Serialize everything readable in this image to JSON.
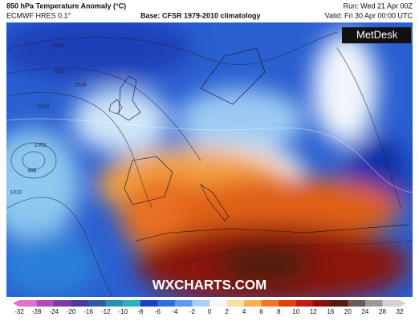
{
  "header": {
    "title": "850 hPa Temperature Anomaly (°C)",
    "model": "ECMWF HRES 0.1°",
    "base": "Base: CFSR 1979-2010 climatology",
    "run": "Run: Wed 21 Apr 00Z",
    "valid": "Valid: Fri 30 Apr 00:00 UTC"
  },
  "logo": "MetDesk",
  "watermark": "WXCHARTS.COM",
  "isobar_labels": [
    "1026",
    "1022",
    "1018",
    "1014",
    "1002",
    "998",
    "1010"
  ],
  "colorbar": {
    "ticks": [
      -32,
      -28,
      -24,
      -20,
      -16,
      -12,
      -10,
      -8,
      -6,
      -4,
      -2,
      0,
      2,
      4,
      6,
      8,
      10,
      12,
      16,
      20,
      24,
      28,
      32
    ],
    "colors": [
      "#e070c8",
      "#b04ab8",
      "#7a3aa8",
      "#4a3a9c",
      "#2f5aa8",
      "#2b8fb0",
      "#2fb0b8",
      "#1e40c8",
      "#2e6ee0",
      "#5b9cf0",
      "#a8d0f8",
      "#f4f8fc",
      "#f8e0a0",
      "#f8b050",
      "#f07820",
      "#e04010",
      "#c01c10",
      "#8c1008",
      "#5a1a10",
      "#6a5a58",
      "#a09898",
      "#d8d0d0"
    ]
  }
}
